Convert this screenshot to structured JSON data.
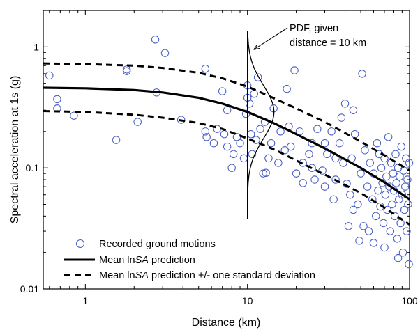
{
  "chart_data": {
    "type": "scatter",
    "xlabel": "Distance (km)",
    "ylabel": "Spectral acceleration at 1s (g)",
    "x_scale": "log",
    "y_scale": "log",
    "xlim": [
      0.55,
      100
    ],
    "ylim": [
      0.01,
      2.0
    ],
    "x_ticks": [
      1,
      10,
      100
    ],
    "x_tick_labels": [
      "1",
      "10",
      "100"
    ],
    "y_ticks": [
      0.01,
      0.1,
      1
    ],
    "y_tick_labels": [
      "0.01",
      "0.1",
      "1"
    ],
    "grid": false,
    "legend": {
      "placement": "bottom-left",
      "entries": [
        {
          "label": "Recorded ground motions",
          "style": "circle-marker"
        },
        {
          "label_pre": "Mean ln",
          "label_italic": "SA",
          "label_post": " prediction",
          "style": "solid"
        },
        {
          "label_pre": "Mean ln",
          "label_italic": "SA",
          "label_post": " prediction +/- one standard deviation",
          "style": "dashed"
        }
      ]
    },
    "annotation": {
      "line1": "PDF, given",
      "line2": "distance = 10 km",
      "pdf_distance": 10
    },
    "curves": {
      "x": [
        0.55,
        1,
        2,
        3,
        5,
        7,
        10,
        15,
        20,
        30,
        50,
        70,
        100
      ],
      "mean": [
        0.46,
        0.455,
        0.44,
        0.42,
        0.38,
        0.34,
        0.29,
        0.23,
        0.19,
        0.145,
        0.1,
        0.076,
        0.055
      ],
      "upper": [
        0.73,
        0.72,
        0.7,
        0.67,
        0.61,
        0.55,
        0.47,
        0.37,
        0.31,
        0.24,
        0.165,
        0.127,
        0.095
      ],
      "lower": [
        0.295,
        0.29,
        0.275,
        0.26,
        0.235,
        0.21,
        0.175,
        0.14,
        0.115,
        0.088,
        0.062,
        0.047,
        0.034
      ]
    },
    "series": [
      {
        "name": "Recorded ground motions",
        "points": [
          [
            0.6,
            0.58
          ],
          [
            0.67,
            0.37
          ],
          [
            0.67,
            0.31
          ],
          [
            0.85,
            0.27
          ],
          [
            1.55,
            0.17
          ],
          [
            1.8,
            0.65
          ],
          [
            1.8,
            0.63
          ],
          [
            2.1,
            0.24
          ],
          [
            2.7,
            1.15
          ],
          [
            2.75,
            0.42
          ],
          [
            3.1,
            0.89
          ],
          [
            3.9,
            0.25
          ],
          [
            5.5,
            0.66
          ],
          [
            5.5,
            0.2
          ],
          [
            5.6,
            0.18
          ],
          [
            6.2,
            0.16
          ],
          [
            6.5,
            0.21
          ],
          [
            7.0,
            0.43
          ],
          [
            7.2,
            0.19
          ],
          [
            7.5,
            0.15
          ],
          [
            7.5,
            0.3
          ],
          [
            8.0,
            0.1
          ],
          [
            8.2,
            0.13
          ],
          [
            8.6,
            0.18
          ],
          [
            9.0,
            0.16
          ],
          [
            9.5,
            0.12
          ],
          [
            9.8,
            0.28
          ],
          [
            10.0,
            0.48
          ],
          [
            10.0,
            0.38
          ],
          [
            10.3,
            0.34
          ],
          [
            10.5,
            0.19
          ],
          [
            10.7,
            0.13
          ],
          [
            11.0,
            0.41
          ],
          [
            11.3,
            0.17
          ],
          [
            11.6,
            0.56
          ],
          [
            12.0,
            0.21
          ],
          [
            12.5,
            0.09
          ],
          [
            12.8,
            0.24
          ],
          [
            13.0,
            0.091
          ],
          [
            14.0,
            0.16
          ],
          [
            14.5,
            0.31
          ],
          [
            15.5,
            0.11
          ],
          [
            17.0,
            0.14
          ],
          [
            17.5,
            0.45
          ],
          [
            18.0,
            0.22
          ],
          [
            18.5,
            0.15
          ],
          [
            19.5,
            0.64
          ],
          [
            21.0,
            0.2
          ],
          [
            22.0,
            0.11
          ],
          [
            24.0,
            0.13
          ],
          [
            25.0,
            0.16
          ],
          [
            26.0,
            0.08
          ],
          [
            27.0,
            0.21
          ],
          [
            29.0,
            0.095
          ],
          [
            30.0,
            0.07
          ],
          [
            31.0,
            0.13
          ],
          [
            33.0,
            0.2
          ],
          [
            34.0,
            0.055
          ],
          [
            35.0,
            0.08
          ],
          [
            37.0,
            0.16
          ],
          [
            38.0,
            0.26
          ],
          [
            39.0,
            0.11
          ],
          [
            40.0,
            0.34
          ],
          [
            41.0,
            0.074
          ],
          [
            42.0,
            0.033
          ],
          [
            43.0,
            0.06
          ],
          [
            44.0,
            0.12
          ],
          [
            45.0,
            0.3
          ],
          [
            46.0,
            0.19
          ],
          [
            48.0,
            0.05
          ],
          [
            49.0,
            0.025
          ],
          [
            50.0,
            0.09
          ],
          [
            51.0,
            0.6
          ],
          [
            52.0,
            0.033
          ],
          [
            53.0,
            0.14
          ],
          [
            55.0,
            0.07
          ],
          [
            56.0,
            0.03
          ],
          [
            57.0,
            0.11
          ],
          [
            59.0,
            0.055
          ],
          [
            60.0,
            0.09
          ],
          [
            62.0,
            0.04
          ],
          [
            63.0,
            0.16
          ],
          [
            64.0,
            0.065
          ],
          [
            65.0,
            0.13
          ],
          [
            66.0,
            0.048
          ],
          [
            67.0,
            0.1
          ],
          [
            68.0,
            0.075
          ],
          [
            69.0,
            0.035
          ],
          [
            70.0,
            0.12
          ],
          [
            71.0,
            0.06
          ],
          [
            72.0,
            0.085
          ],
          [
            73.0,
            0.045
          ],
          [
            74.0,
            0.18
          ],
          [
            75.0,
            0.07
          ],
          [
            76.0,
            0.03
          ],
          [
            77.0,
            0.11
          ],
          [
            78.0,
            0.05
          ],
          [
            79.0,
            0.09
          ],
          [
            80.0,
            0.065
          ],
          [
            81.0,
            0.04
          ],
          [
            82.0,
            0.13
          ],
          [
            83.0,
            0.075
          ],
          [
            84.0,
            0.026
          ],
          [
            85.0,
            0.1
          ],
          [
            86.0,
            0.055
          ],
          [
            87.0,
            0.085
          ],
          [
            88.0,
            0.035
          ],
          [
            89.0,
            0.15
          ],
          [
            90.0,
            0.06
          ],
          [
            91.0,
            0.02
          ],
          [
            92.0,
            0.095
          ],
          [
            93.0,
            0.045
          ],
          [
            94.0,
            0.07
          ],
          [
            95.0,
            0.12
          ],
          [
            96.0,
            0.03
          ],
          [
            97.0,
            0.08
          ],
          [
            98.0,
            0.05
          ],
          [
            99.0,
            0.016
          ],
          [
            99.5,
            0.11
          ],
          [
            85.0,
            0.018
          ],
          [
            70.0,
            0.022
          ],
          [
            60.0,
            0.024
          ],
          [
            45.0,
            0.045
          ],
          [
            35.0,
            0.12
          ],
          [
            30.0,
            0.16
          ],
          [
            25.0,
            0.1
          ],
          [
            22.0,
            0.075
          ],
          [
            20.0,
            0.09
          ],
          [
            16.0,
            0.2
          ],
          [
            13.5,
            0.12
          ]
        ]
      }
    ]
  }
}
